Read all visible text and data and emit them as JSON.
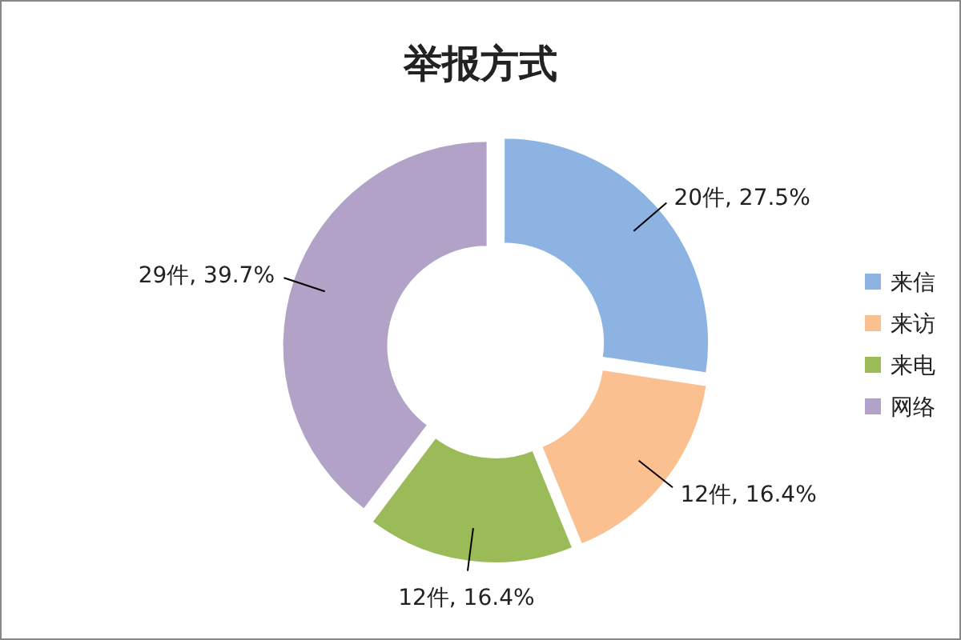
{
  "chart_data": {
    "type": "donut",
    "title": "举报方式",
    "categories": [
      "来信",
      "来访",
      "来电",
      "网络"
    ],
    "values": [
      20,
      12,
      12,
      29
    ],
    "colors": [
      "#8db3e2",
      "#fac090",
      "#9bbb59",
      "#b3a2c7"
    ],
    "value_labels": [
      "20件, 27.5%",
      "12件, 16.4%",
      "12件, 16.4%",
      "29件, 39.7%"
    ],
    "legend": "right"
  }
}
